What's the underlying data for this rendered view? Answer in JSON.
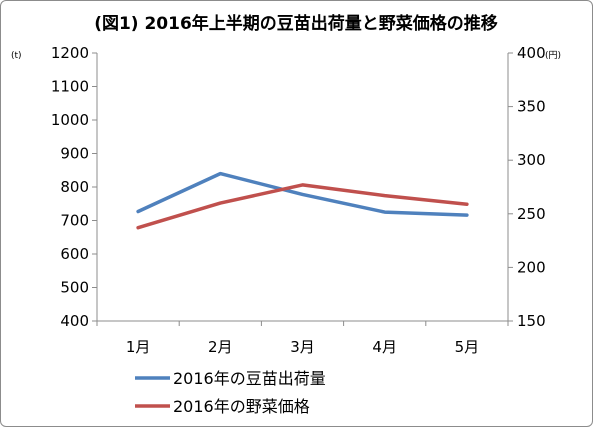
{
  "chart_data": {
    "type": "line",
    "title": "(図1) 2016年上半期の豆苗出荷量と野菜価格の推移",
    "categories": [
      "1月",
      "2月",
      "3月",
      "4月",
      "5月"
    ],
    "y_left": {
      "unit": "(t)",
      "ylim": [
        400,
        1200
      ],
      "ticks": [
        400,
        500,
        600,
        700,
        800,
        900,
        1000,
        1100,
        1200
      ]
    },
    "y_right": {
      "unit": "(円)",
      "ylim": [
        150,
        400
      ],
      "ticks": [
        150,
        200,
        250,
        300,
        350,
        400
      ]
    },
    "grid": false,
    "legend_position": "bottom",
    "series": [
      {
        "name": "2016年の豆苗出荷量",
        "axis": "left",
        "color": "#4f81bd",
        "values": [
          727,
          840,
          778,
          725,
          716
        ]
      },
      {
        "name": "2016年の野菜価格",
        "axis": "right",
        "color": "#c0504d",
        "values": [
          237,
          260,
          277,
          267,
          259
        ]
      }
    ]
  }
}
